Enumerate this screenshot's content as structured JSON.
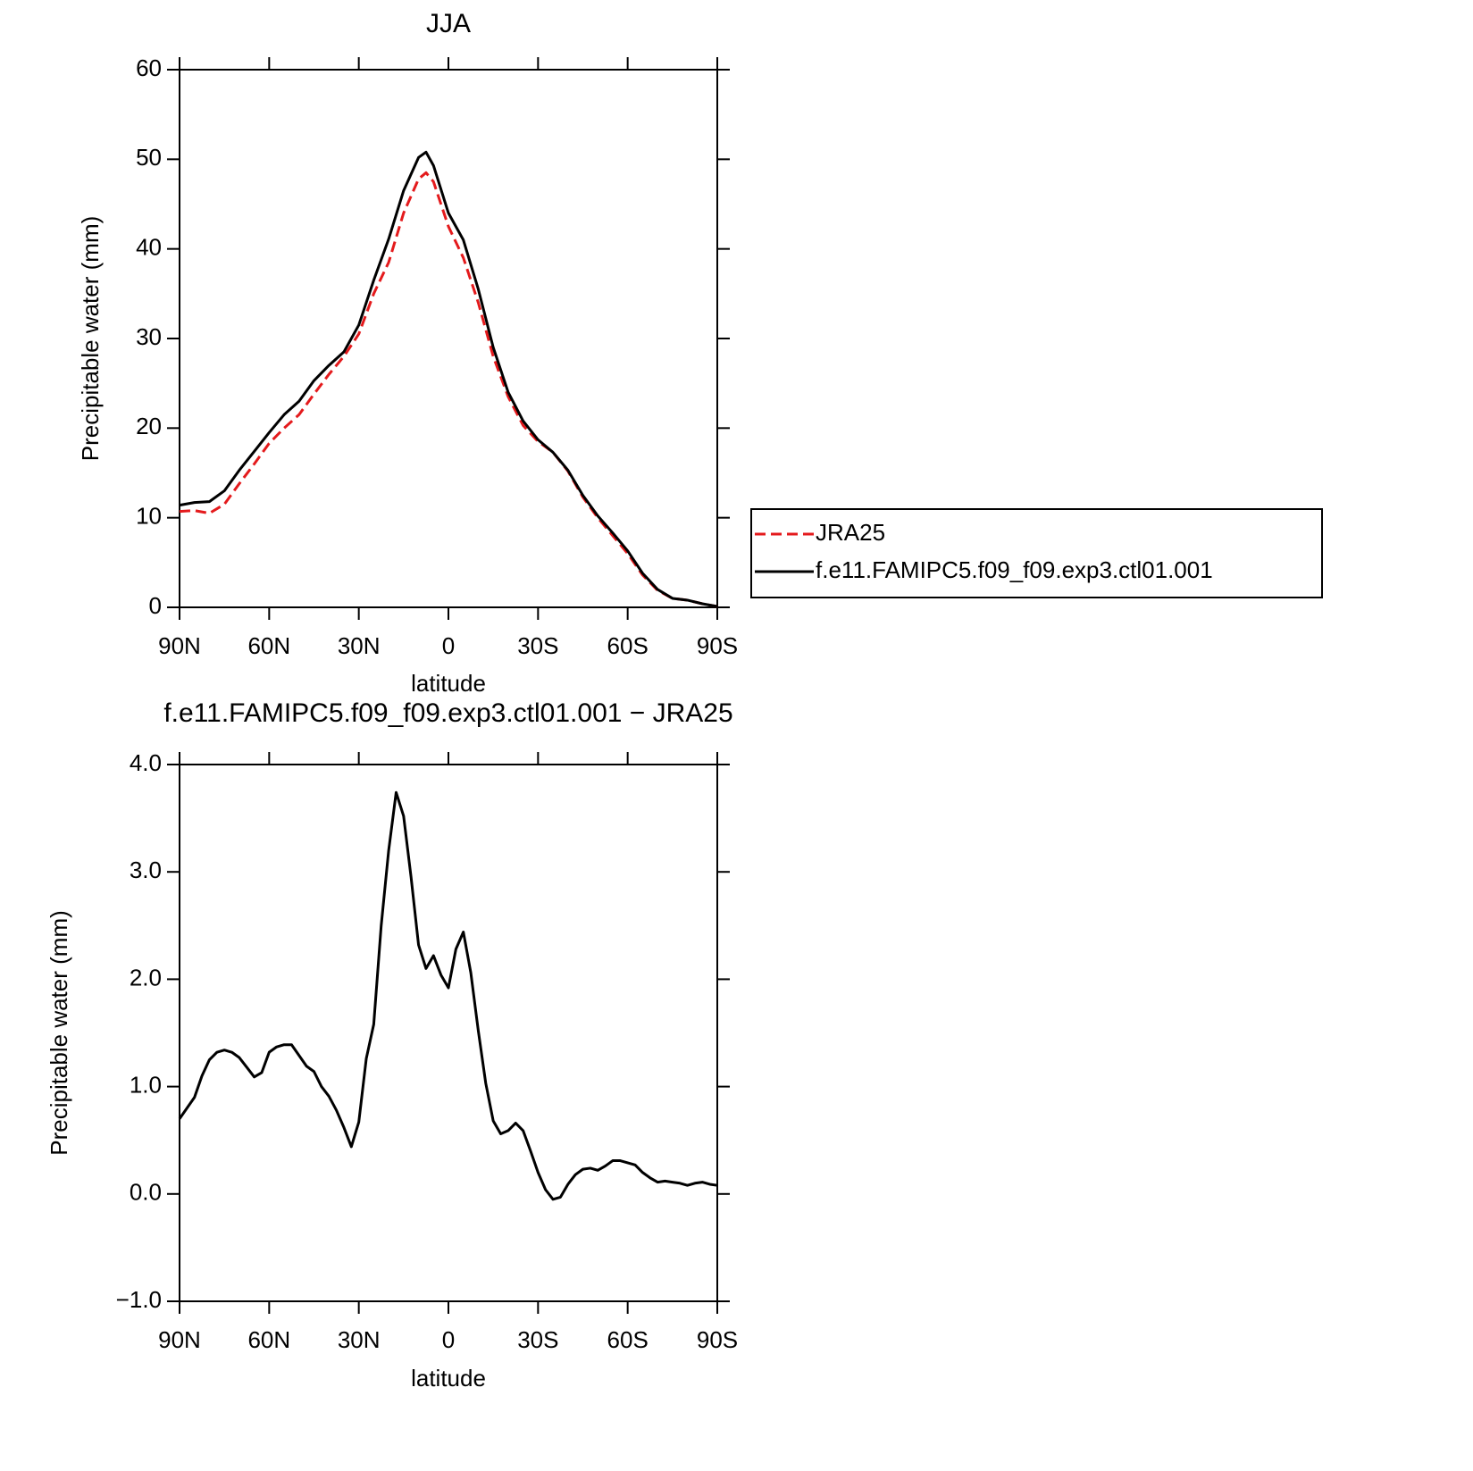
{
  "chart_data": [
    {
      "type": "line",
      "title": "JJA",
      "xlabel": "latitude",
      "ylabel": "Precipitable water (mm)",
      "x": [
        90,
        85,
        80,
        75,
        70,
        65,
        60,
        55,
        50,
        45,
        40,
        35,
        30,
        25,
        20,
        15,
        10,
        7.5,
        5,
        0,
        -5,
        -10,
        -15,
        -20,
        -25,
        -30,
        -35,
        -40,
        -45,
        -50,
        -55,
        -60,
        -65,
        -70,
        -75,
        -80,
        -85,
        -90
      ],
      "series": [
        {
          "name": "JRA25",
          "color": "#e41a1c",
          "style": "dashed",
          "values": [
            10.7,
            10.8,
            10.5,
            11.5,
            13.8,
            16,
            18.3,
            20,
            21.5,
            23.8,
            26,
            28,
            30.5,
            35,
            38.5,
            44,
            47.8,
            48.5,
            47.5,
            42.5,
            39,
            34,
            28,
            23.5,
            20.3,
            18.5,
            17.3,
            15.2,
            12.3,
            10,
            8,
            6,
            3.6,
            1.9,
            1,
            0.8,
            0.4,
            0.1
          ]
        },
        {
          "name": "f.e11.FAMIPC5.f09_f09.exp3.ctl01.001",
          "color": "#000000",
          "style": "solid",
          "values": [
            11.4,
            11.7,
            11.8,
            13,
            15.3,
            17.4,
            19.5,
            21.5,
            23,
            25.3,
            27,
            28.5,
            31.5,
            36.5,
            41.1,
            46.5,
            50.2,
            50.8,
            49.3,
            44,
            41,
            35.5,
            29,
            24,
            20.8,
            18.7,
            17.3,
            15.3,
            12.5,
            10.2,
            8.3,
            6.3,
            3.8,
            2,
            1,
            0.8,
            0.4,
            0.1
          ]
        }
      ],
      "xlim": [
        90,
        -90
      ],
      "xticks": [
        {
          "value": 90,
          "label": "90N"
        },
        {
          "value": 60,
          "label": "60N"
        },
        {
          "value": 30,
          "label": "30N"
        },
        0,
        {
          "value": -30,
          "label": "30S"
        },
        {
          "value": -60,
          "label": "60S"
        },
        {
          "value": -90,
          "label": "90S"
        }
      ],
      "ylim": [
        0,
        60
      ],
      "yticks": [
        0,
        10,
        20,
        30,
        40,
        50,
        60
      ],
      "legend": "right"
    },
    {
      "type": "line",
      "title": "f.e11.FAMIPC5.f09_f09.exp3.ctl01.001 − JRA25",
      "xlabel": "latitude",
      "ylabel": "Precipitable water (mm)",
      "x": [
        90,
        87.5,
        85,
        82.5,
        80,
        77.5,
        75,
        72.5,
        70,
        67.5,
        65,
        62.5,
        60,
        57.5,
        55,
        52.5,
        50,
        47.5,
        45,
        42.5,
        40,
        37.5,
        35,
        32.5,
        30,
        27.5,
        25,
        22.5,
        20,
        17.5,
        15,
        12.5,
        10,
        7.5,
        5,
        2.5,
        0,
        -2.5,
        -5,
        -7.5,
        -10,
        -12.5,
        -15,
        -17.5,
        -20,
        -22.5,
        -25,
        -27.5,
        -30,
        -32.5,
        -35,
        -37.5,
        -40,
        -42.5,
        -45,
        -47.5,
        -50,
        -52.5,
        -55,
        -57.5,
        -60,
        -62.5,
        -65,
        -67.5,
        -70,
        -72.5,
        -75,
        -77.5,
        -80,
        -82.5,
        -85,
        -87.5,
        -90
      ],
      "series": [
        {
          "name": "f.e11.FAMIPC5.f09_f09.exp3.ctl01.001 − JRA25",
          "color": "#000000",
          "style": "solid",
          "values": [
            0.7,
            0.8,
            0.9,
            1.1,
            1.25,
            1.32,
            1.34,
            1.32,
            1.27,
            1.18,
            1.09,
            1.13,
            1.32,
            1.37,
            1.39,
            1.39,
            1.29,
            1.19,
            1.14,
            1.0,
            0.91,
            0.78,
            0.62,
            0.44,
            0.67,
            1.26,
            1.58,
            2.5,
            3.2,
            3.74,
            3.52,
            2.95,
            2.32,
            2.1,
            2.22,
            2.04,
            1.92,
            2.28,
            2.44,
            2.06,
            1.52,
            1.03,
            0.68,
            0.56,
            0.59,
            0.66,
            0.59,
            0.4,
            0.2,
            0.04,
            -0.05,
            -0.03,
            0.09,
            0.18,
            0.23,
            0.24,
            0.22,
            0.26,
            0.31,
            0.31,
            0.29,
            0.27,
            0.2,
            0.15,
            0.11,
            0.12,
            0.11,
            0.1,
            0.08,
            0.1,
            0.11,
            0.09,
            0.08
          ]
        }
      ],
      "xlim": [
        90,
        -90
      ],
      "xticks": [
        {
          "value": 90,
          "label": "90N"
        },
        {
          "value": 60,
          "label": "60N"
        },
        {
          "value": 30,
          "label": "30N"
        },
        0,
        {
          "value": -30,
          "label": "30S"
        },
        {
          "value": -60,
          "label": "60S"
        },
        {
          "value": -90,
          "label": "90S"
        }
      ],
      "ylim": [
        -1,
        4
      ],
      "yticks": [
        {
          "value": -1,
          "label": "−1.0"
        },
        {
          "value": 0,
          "label": "0.0"
        },
        {
          "value": 1,
          "label": "1.0"
        },
        {
          "value": 2,
          "label": "2.0"
        },
        {
          "value": 3,
          "label": "3.0"
        },
        {
          "value": 4,
          "label": "4.0"
        }
      ]
    }
  ]
}
